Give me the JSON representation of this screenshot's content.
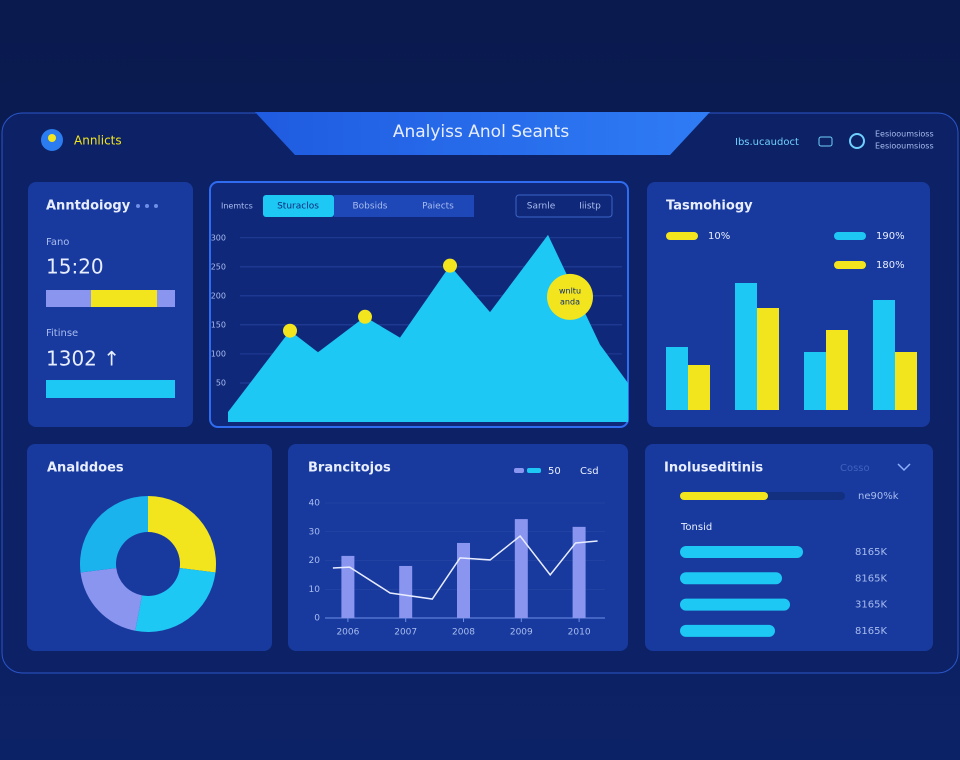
{
  "header": {
    "brand": "Annlicts",
    "title": "Analyiss Anol Seants",
    "user": "Ibs.ucaudoct",
    "menu": [
      "Eesiooumsioss",
      "Eesiooumsioss"
    ]
  },
  "stats_card": {
    "title": "Anntdoiogy",
    "label_1": "Fano",
    "value_1": "15:20",
    "label_2": "Fitinse",
    "value_2": "1302 ↑"
  },
  "toolbar": {
    "tabs": [
      "Inemtcs",
      "Sturaclos",
      "Bobsids",
      "Paiects"
    ],
    "buttons": [
      "Sarnle",
      "Iiistp"
    ]
  },
  "chart_data": [
    {
      "type": "area",
      "color": "#1ec8f5",
      "x": [
        0,
        62,
        90,
        137,
        172,
        222,
        262,
        320,
        372,
        400
      ],
      "values": [
        0,
        140,
        103,
        164,
        128,
        252,
        172,
        305,
        116,
        50
      ],
      "xlim": [
        0,
        400
      ],
      "ylim": [
        0,
        310
      ],
      "yticks": [
        50,
        100,
        150,
        200,
        250,
        300
      ],
      "grid": true,
      "highlight": [
        1,
        3,
        5
      ],
      "annotation": [
        "wnltu",
        "anda"
      ]
    },
    {
      "type": "grouped-bar",
      "title": "Tasmohiogy",
      "series": [
        {
          "name": "190%",
          "color": "#1ec8f5",
          "values": [
            63,
            127,
            58,
            110
          ]
        },
        {
          "name": "10%",
          "color": "#f2e51d",
          "values": [
            45,
            102,
            80,
            58
          ]
        }
      ],
      "legend_extra": [
        {
          "name": "180%",
          "color": "#f2e51d"
        }
      ]
    },
    {
      "type": "pie",
      "title": "Analddoes",
      "values": [
        27,
        26,
        20,
        27
      ],
      "colors": [
        "#f2e51d",
        "#1ec8f5",
        "#8a95f0",
        "#1ab3ee"
      ]
    },
    {
      "type": "combo",
      "title": "Brancitojos",
      "series": [
        {
          "name": "50",
          "type": "bar",
          "color": "#8a95f0",
          "x": [
            2006,
            2007,
            2008,
            2009,
            2010
          ],
          "values": [
            21.6,
            18.1,
            26.1,
            34.4,
            31.7
          ]
        },
        {
          "name": "Csd",
          "type": "line",
          "color": "#e8ecff",
          "x": [
            2005.74,
            2006.03,
            2006.73,
            2007.46,
            2007.94,
            2008.46,
            2008.98,
            2009.5,
            2009.94,
            2010.32
          ],
          "values": [
            17.4,
            17.7,
            8.7,
            6.6,
            20.9,
            20.2,
            28.5,
            15.0,
            26.1,
            26.8
          ]
        }
      ],
      "xlim": [
        2005.5,
        2010.5
      ],
      "xticks": [
        2006,
        2007,
        2008,
        2009,
        2010
      ],
      "ylim": [
        0,
        40
      ],
      "yticks": [
        0,
        10,
        20,
        30,
        40
      ]
    },
    {
      "type": "hbar",
      "title": "Inoluseditinis",
      "dropdown": "Cosso",
      "progress_label": "ne90%k",
      "subtitle": "Tonsid",
      "color": "#1ec8f5",
      "values": [
        123,
        102,
        110,
        95
      ],
      "labels": [
        "8165K",
        "8165K",
        "3165K",
        "8165K"
      ]
    }
  ]
}
